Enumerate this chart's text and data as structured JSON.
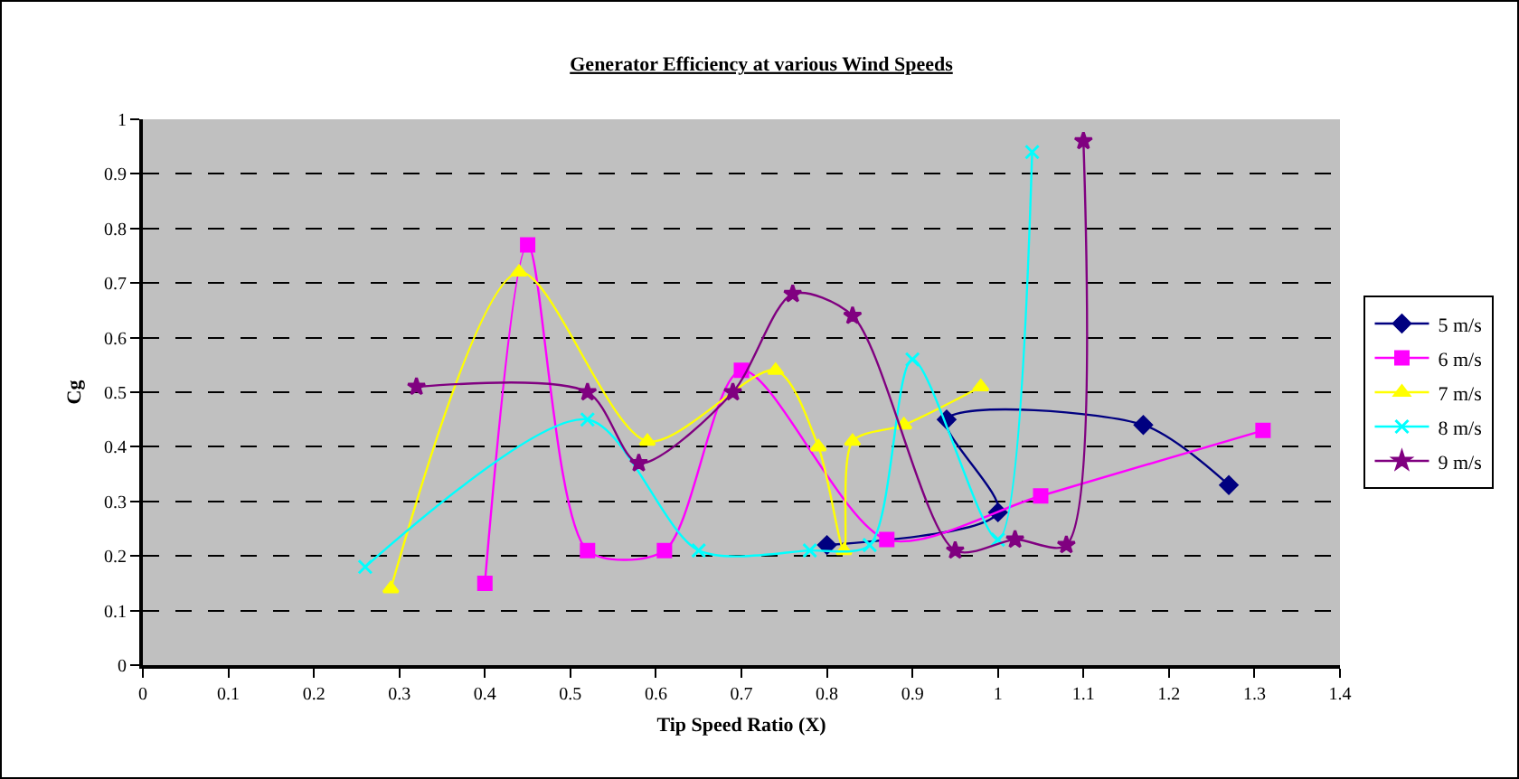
{
  "chart_data": {
    "type": "line",
    "title": "Generator Efficiency at various Wind Speeds",
    "xlabel": "Tip Speed Ratio (X)",
    "ylabel": "Cg",
    "xlim": [
      0,
      1.4
    ],
    "xticks": [
      0,
      0.1,
      0.2,
      0.3,
      0.4,
      0.5,
      0.6,
      0.7,
      0.8,
      0.9,
      1,
      1.1,
      1.2,
      1.3,
      1.4
    ],
    "ylim": [
      0,
      1
    ],
    "yticks": [
      0,
      0.1,
      0.2,
      0.3,
      0.4,
      0.5,
      0.6,
      0.7,
      0.8,
      0.9,
      1
    ],
    "grid": "y",
    "legend": "right",
    "line_style": "solid",
    "series": [
      {
        "name": "5 m/s",
        "color": "#000080",
        "marker": "diamond",
        "x": [
          0.8,
          1.0,
          0.94,
          1.17,
          1.27
        ],
        "values": [
          0.22,
          0.28,
          0.45,
          0.44,
          0.33
        ]
      },
      {
        "name": "6 m/s",
        "color": "#ff00ff",
        "marker": "square",
        "x": [
          0.4,
          0.45,
          0.52,
          0.61,
          0.7,
          0.87,
          1.05,
          1.31
        ],
        "values": [
          0.15,
          0.77,
          0.21,
          0.21,
          0.54,
          0.23,
          0.31,
          0.43
        ]
      },
      {
        "name": "7 m/s",
        "color": "#ffff00",
        "marker": "triangle",
        "x": [
          0.29,
          0.44,
          0.59,
          0.74,
          0.79,
          0.82,
          0.83,
          0.89,
          0.98
        ],
        "values": [
          0.14,
          0.72,
          0.41,
          0.54,
          0.4,
          0.21,
          0.41,
          0.44,
          0.51
        ]
      },
      {
        "name": "8 m/s",
        "color": "#00ffff",
        "marker": "cross",
        "x": [
          0.26,
          0.52,
          0.65,
          0.78,
          0.85,
          0.9,
          1.0,
          1.04
        ],
        "values": [
          0.18,
          0.45,
          0.21,
          0.21,
          0.22,
          0.56,
          0.23,
          0.94
        ]
      },
      {
        "name": "9 m/s",
        "color": "#800080",
        "marker": "star",
        "x": [
          0.32,
          0.52,
          0.58,
          0.69,
          0.76,
          0.83,
          0.95,
          1.02,
          1.08,
          1.1
        ],
        "values": [
          0.51,
          0.5,
          0.37,
          0.5,
          0.68,
          0.64,
          0.21,
          0.23,
          0.22,
          0.96
        ]
      }
    ]
  }
}
